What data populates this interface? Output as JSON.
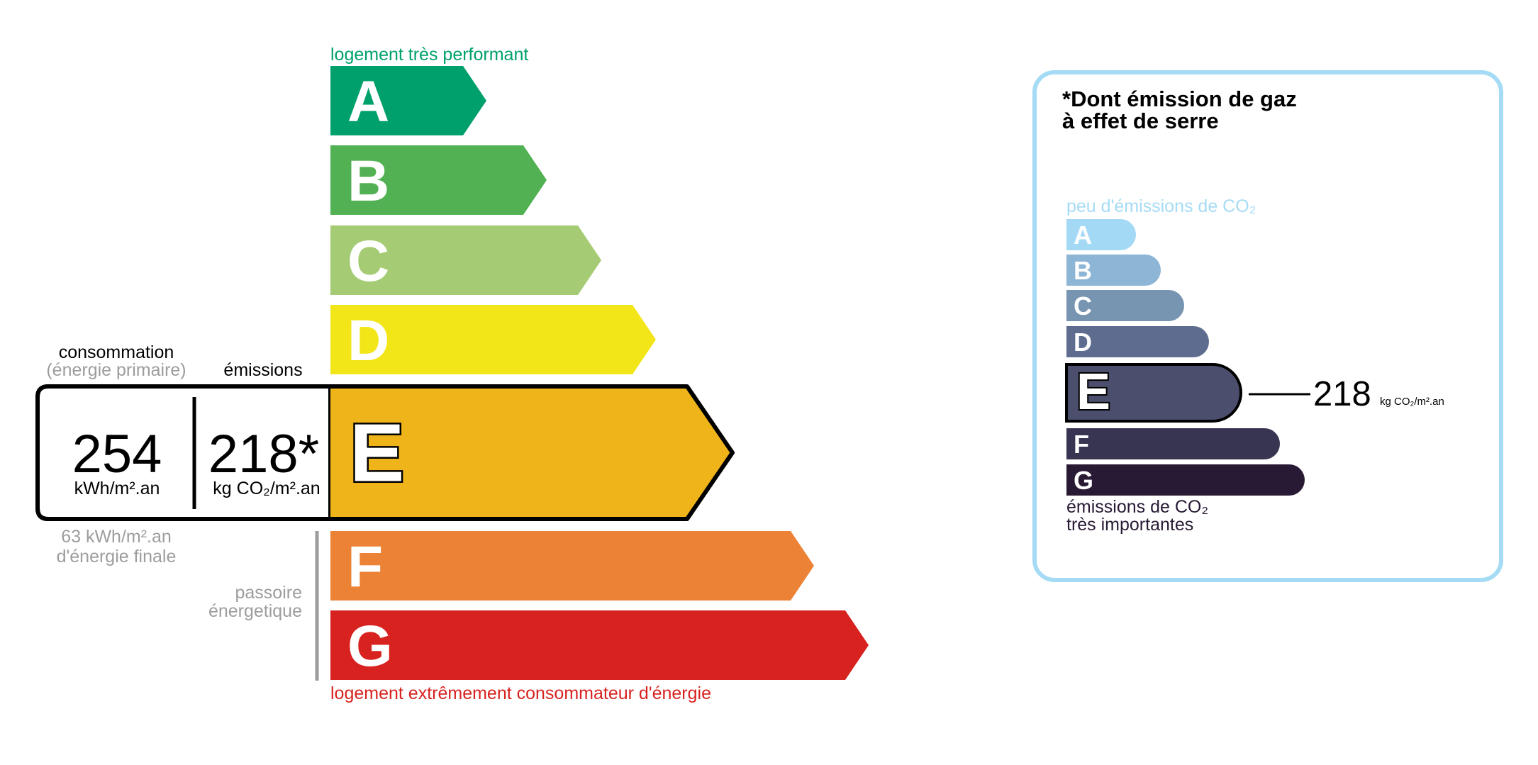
{
  "energy": {
    "top_label": "logement très performant",
    "bottom_label": "logement extrêmement consommateur d'énergie",
    "classes": [
      {
        "letter": "A",
        "color": "#00a06d"
      },
      {
        "letter": "B",
        "color": "#52b153"
      },
      {
        "letter": "C",
        "color": "#a5cc74"
      },
      {
        "letter": "D",
        "color": "#f2e619"
      },
      {
        "letter": "E",
        "color": "#f0b41b"
      },
      {
        "letter": "F",
        "color": "#eb8235"
      },
      {
        "letter": "G",
        "color": "#d7221f"
      }
    ],
    "current_class": "E",
    "consumption_label": "consommation",
    "consumption_sublabel": "(énergie primaire)",
    "emissions_label": "émissions",
    "consumption_value": "254",
    "consumption_unit": "kWh/m².an",
    "emissions_value": "218*",
    "emissions_unit": "kg CO₂/m².an",
    "final_energy_line1": "63 kWh/m².an",
    "final_energy_line2": "d'énergie finale",
    "passoire_line1": "passoire",
    "passoire_line2": "énergetique"
  },
  "ges": {
    "title_line1": "*Dont émission de gaz",
    "title_line2": "à effet de serre",
    "top_label": "peu d'émissions de CO₂",
    "bottom_line1": "émissions de CO₂",
    "bottom_line2": "très importantes",
    "border_color": "#a6dbf5",
    "classes": [
      {
        "letter": "A",
        "color": "#a4d9f6"
      },
      {
        "letter": "B",
        "color": "#8db5d5"
      },
      {
        "letter": "C",
        "color": "#7794b1"
      },
      {
        "letter": "D",
        "color": "#5e6d8f"
      },
      {
        "letter": "E",
        "color": "#4b4f6d"
      },
      {
        "letter": "F",
        "color": "#373552"
      },
      {
        "letter": "G",
        "color": "#281a34"
      }
    ],
    "current_class": "E",
    "value": "218",
    "unit": "kg CO₂/m².an"
  }
}
